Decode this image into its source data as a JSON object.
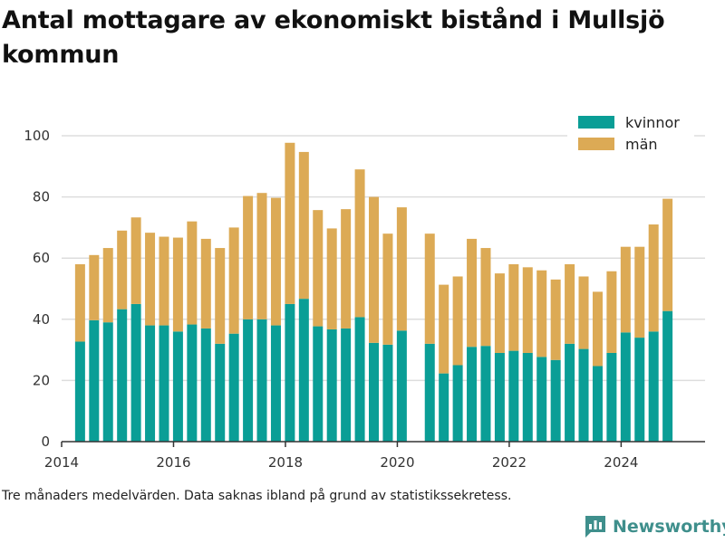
{
  "title": "Antal mottagare av ekonomiskt bistånd i Mullsjö kommun",
  "note": "Tre månaders medelvärden. Data saknas ibland på grund av statistikssekretess.",
  "brand": {
    "name": "Newsworthy",
    "color": "#3f8f8c"
  },
  "chart_data": {
    "type": "bar",
    "stacked": true,
    "ylim": [
      0,
      100
    ],
    "yticks": [
      0,
      20,
      40,
      60,
      80,
      100
    ],
    "xlim": [
      2014,
      2025.5
    ],
    "xticks": [
      2014,
      2016,
      2018,
      2020,
      2022,
      2024
    ],
    "grid": true,
    "legend_position": "top-right",
    "x": [
      2014.33,
      2014.58,
      2014.83,
      2015.08,
      2015.33,
      2015.58,
      2015.83,
      2016.08,
      2016.33,
      2016.58,
      2016.83,
      2017.08,
      2017.33,
      2017.58,
      2017.83,
      2018.08,
      2018.33,
      2018.58,
      2018.83,
      2019.08,
      2019.33,
      2019.58,
      2019.83,
      2020.08,
      2020.58,
      2020.83,
      2021.08,
      2021.33,
      2021.58,
      2021.83,
      2022.08,
      2022.33,
      2022.58,
      2022.83,
      2023.08,
      2023.33,
      2023.58,
      2023.83,
      2024.08,
      2024.33,
      2024.58,
      2024.83
    ],
    "series": [
      {
        "name": "kvinnor",
        "color": "#0a9e96",
        "values": [
          32.7,
          39.7,
          39.0,
          43.3,
          45.0,
          38.0,
          38.0,
          36.0,
          38.3,
          37.0,
          32.0,
          35.3,
          40.0,
          40.0,
          38.0,
          45.0,
          46.7,
          37.7,
          36.7,
          37.0,
          40.7,
          32.3,
          31.7,
          36.3,
          32.0,
          22.3,
          25.0,
          31.0,
          31.3,
          29.0,
          29.7,
          29.0,
          27.7,
          26.7,
          32.0,
          30.3,
          24.7,
          29.0,
          35.7,
          34.0,
          36.0,
          42.7
        ]
      },
      {
        "name": "män",
        "color": "#dcaa55",
        "values": [
          25.3,
          21.3,
          24.3,
          25.7,
          28.3,
          30.3,
          29.0,
          30.7,
          33.7,
          29.3,
          31.3,
          34.7,
          40.3,
          41.3,
          41.7,
          52.7,
          48.0,
          38.0,
          33.0,
          39.0,
          48.3,
          47.7,
          36.3,
          40.3,
          36.0,
          29.0,
          29.0,
          35.3,
          32.0,
          26.0,
          28.3,
          28.0,
          28.3,
          26.3,
          26.0,
          23.7,
          24.3,
          26.7,
          28.0,
          29.7,
          35.0,
          36.7
        ]
      }
    ]
  }
}
